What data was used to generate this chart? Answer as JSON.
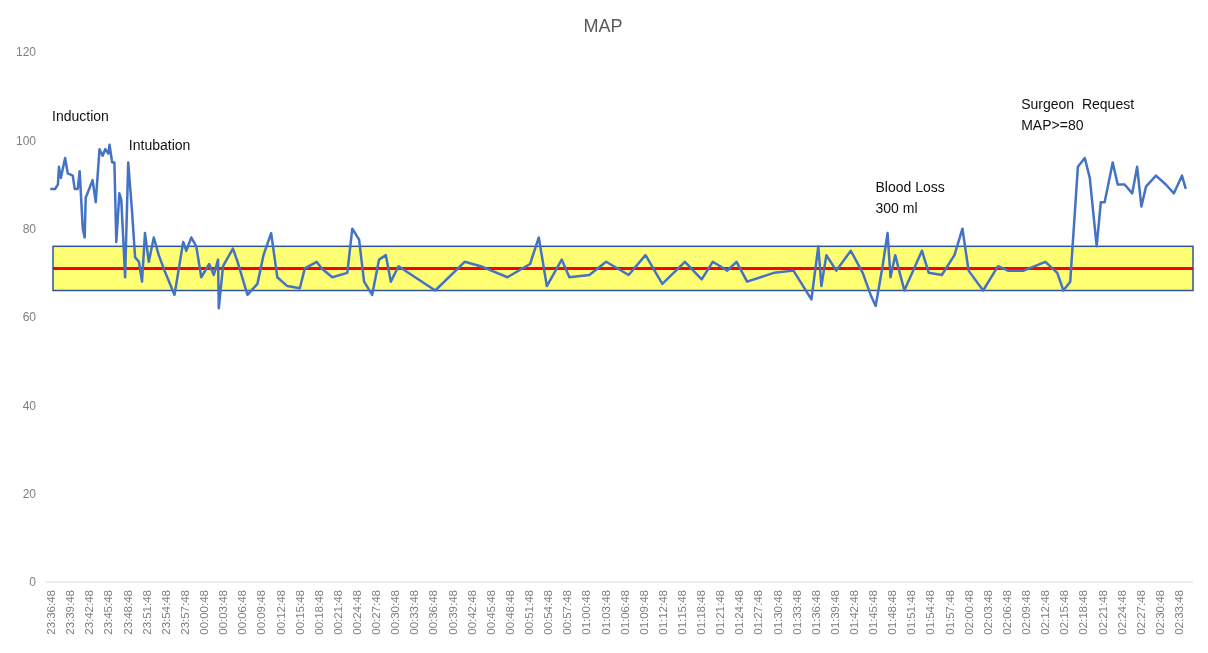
{
  "chart_data": {
    "type": "line",
    "title": "MAP",
    "x": [
      "2000-01-01T23:36:40",
      "2000-01-01T23:37:26",
      "2000-01-01T23:37:52",
      "2000-01-01T23:38:02",
      "2000-01-01T23:38:20",
      "2000-01-01T23:39:00",
      "2000-01-01T23:39:25",
      "2000-01-01T23:40:12",
      "2000-01-01T23:40:30",
      "2000-01-01T23:40:59",
      "2000-01-01T23:41:17",
      "2000-01-01T23:41:46",
      "2000-01-01T23:42:04",
      "2000-01-01T23:42:14",
      "2000-01-01T23:43:19",
      "2000-01-01T23:43:48",
      "2000-01-01T23:44:24",
      "2000-01-01T23:44:53",
      "2000-01-01T23:45:18",
      "2000-01-01T23:45:47",
      "2000-01-01T23:45:58",
      "2000-01-01T23:46:23",
      "2000-01-01T23:46:44",
      "2000-01-01T23:47:02",
      "2000-01-01T23:47:31",
      "2000-01-01T23:47:49",
      "2000-01-01T23:48:25",
      "2000-01-01T23:48:54",
      "2000-01-01T23:49:30",
      "2000-01-01T23:49:59",
      "2000-01-01T23:50:35",
      "2000-01-01T23:51:04",
      "2000-01-01T23:51:32",
      "2000-01-01T23:52:08",
      "2000-01-01T23:52:55",
      "2000-01-01T23:53:42",
      "2000-01-01T23:54:36",
      "2000-01-01T23:56:10",
      "2000-01-01T23:57:32",
      "2000-01-01T23:58:01",
      "2000-01-01T23:58:48",
      "2000-01-01T23:59:35",
      "2000-01-02T00:00:22",
      "2000-01-02T00:01:37",
      "2000-01-02T00:02:20",
      "2000-01-02T00:03:00",
      "2000-01-02T00:03:07",
      "2000-01-02T00:03:47",
      "2000-01-02T00:05:20",
      "2000-01-02T00:06:04",
      "2000-01-02T00:07:37",
      "2000-01-02T00:09:11",
      "2000-01-02T00:10:08",
      "2000-01-02T00:11:20",
      "2000-01-02T00:12:18",
      "2000-01-02T00:13:52",
      "2000-01-02T00:15:50",
      "2000-01-02T00:16:37",
      "2000-01-02T00:18:29",
      "2000-01-02T00:19:16",
      "2000-01-02T00:20:56",
      "2000-01-02T00:23:17",
      "2000-01-02T00:24:04",
      "2000-01-02T00:25:08",
      "2000-01-02T00:25:55",
      "2000-01-02T00:27:11",
      "2000-01-02T00:28:16",
      "2000-01-02T00:29:20",
      "2000-01-02T00:30:07",
      "2000-01-02T00:31:19",
      "2000-01-02T00:37:05",
      "2000-01-02T00:41:42",
      "2000-01-02T00:44:13",
      "2000-01-02T00:48:25",
      "2000-01-02T00:51:58",
      "2000-01-02T00:53:20",
      "2000-01-02T00:54:36",
      "2000-01-02T00:56:56",
      "2000-01-02T00:58:08",
      "2000-01-02T01:01:16",
      "2000-01-02T01:03:54",
      "2000-01-02T01:07:26",
      "2000-01-02T01:10:05",
      "2000-01-02T01:12:43",
      "2000-01-02T01:16:16",
      "2000-01-02T01:18:54",
      "2000-01-02T01:20:38",
      "2000-01-02T01:22:55",
      "2000-01-02T01:24:22",
      "2000-01-02T01:26:02",
      "2000-01-02T01:30:14",
      "2000-01-02T01:33:18",
      "2000-01-02T01:36:07",
      "2000-01-02T01:37:12",
      "2000-01-02T01:37:41",
      "2000-01-02T01:38:28",
      "2000-01-02T01:40:01",
      "2000-01-02T01:42:18",
      "2000-01-02T01:44:10",
      "2000-01-02T01:45:25",
      "2000-01-02T01:46:12",
      "2000-01-02T01:47:17",
      "2000-01-02T01:48:04",
      "2000-01-02T01:48:32",
      "2000-01-02T01:49:16",
      "2000-01-02T01:50:42",
      "2000-01-02T01:53:28",
      "2000-01-02T01:54:32",
      "2000-01-02T01:56:35",
      "2000-01-02T01:58:34",
      "2000-01-02T01:59:49",
      "2000-01-02T02:00:47",
      "2000-01-02T02:03:04",
      "2000-01-02T02:05:24",
      "2000-01-02T02:06:58",
      "2000-01-02T02:09:25",
      "2000-01-02T02:12:50",
      "2000-01-02T02:14:42",
      "2000-01-02T02:15:40",
      "2000-01-02T02:16:44",
      "2000-01-02T02:17:56",
      "2000-01-02T02:19:01",
      "2000-01-02T02:19:48",
      "2000-01-02T02:20:53",
      "2000-01-02T02:21:32",
      "2000-01-02T02:22:08",
      "2000-01-02T02:23:24",
      "2000-01-02T02:24:11",
      "2000-01-02T02:25:16",
      "2000-01-02T02:26:28",
      "2000-01-02T02:27:14",
      "2000-01-02T02:27:54",
      "2000-01-02T02:28:37",
      "2000-01-02T02:30:11",
      "2000-01-02T02:31:44",
      "2000-01-02T02:33:00",
      "2000-01-02T02:34:16",
      "2000-01-02T02:34:52"
    ],
    "series": [
      {
        "color": "#4472c4",
        "values": [
          89,
          89,
          90,
          94,
          91.5,
          96,
          92.5,
          92,
          89,
          89,
          93,
          80,
          78,
          87,
          91,
          86,
          98,
          96.5,
          98,
          97,
          99,
          95,
          95,
          77,
          88,
          86.5,
          69,
          95,
          84,
          73.5,
          72.5,
          68,
          79,
          72.5,
          78,
          74,
          70.5,
          65,
          77,
          75,
          78,
          76,
          69,
          72,
          69.5,
          73,
          62,
          71.5,
          75.5,
          72.5,
          65,
          67.5,
          74,
          79,
          69,
          67,
          66.5,
          71,
          72.5,
          71,
          69,
          70,
          80,
          77.5,
          68,
          65,
          73,
          74,
          68,
          71.5,
          66,
          72.5,
          71.5,
          69,
          72,
          78,
          67,
          73,
          69,
          69.5,
          72.5,
          69.5,
          74,
          67.5,
          72.5,
          68.5,
          72.5,
          70.5,
          72.5,
          68,
          70,
          70.5,
          64,
          76,
          67,
          74,
          70.5,
          75,
          70,
          65,
          62.5,
          71.5,
          79,
          69,
          74,
          66,
          75,
          70,
          69.5,
          74,
          80,
          70.5,
          66,
          71.5,
          70.5,
          70.5,
          72.5,
          70,
          66,
          68,
          94,
          96,
          91.5,
          76,
          86,
          86,
          95,
          90,
          90,
          88,
          94,
          85,
          89.5,
          92,
          90,
          88,
          92,
          89
        ]
      }
    ],
    "xlim": [
      "2000-01-01T23:36:00",
      "2000-01-02T02:36:00"
    ],
    "xticks": [
      {
        "value": "2000-01-01T23:36:48",
        "label": "23:36:48"
      },
      {
        "value": "2000-01-01T23:39:48",
        "label": "23:39:48"
      },
      {
        "value": "2000-01-01T23:42:48",
        "label": "23:42:48"
      },
      {
        "value": "2000-01-01T23:45:48",
        "label": "23:45:48"
      },
      {
        "value": "2000-01-01T23:48:48",
        "label": "23:48:48"
      },
      {
        "value": "2000-01-01T23:51:48",
        "label": "23:51:48"
      },
      {
        "value": "2000-01-01T23:54:48",
        "label": "23:54:48"
      },
      {
        "value": "2000-01-01T23:57:48",
        "label": "23:57:48"
      },
      {
        "value": "2000-01-02T00:00:48",
        "label": "00:00:48"
      },
      {
        "value": "2000-01-02T00:03:48",
        "label": "00:03:48"
      },
      {
        "value": "2000-01-02T00:06:48",
        "label": "00:06:48"
      },
      {
        "value": "2000-01-02T00:09:48",
        "label": "00:09:48"
      },
      {
        "value": "2000-01-02T00:12:48",
        "label": "00:12:48"
      },
      {
        "value": "2000-01-02T00:15:48",
        "label": "00:15:48"
      },
      {
        "value": "2000-01-02T00:18:48",
        "label": "00:18:48"
      },
      {
        "value": "2000-01-02T00:21:48",
        "label": "00:21:48"
      },
      {
        "value": "2000-01-02T00:24:48",
        "label": "00:24:48"
      },
      {
        "value": "2000-01-02T00:27:48",
        "label": "00:27:48"
      },
      {
        "value": "2000-01-02T00:30:48",
        "label": "00:30:48"
      },
      {
        "value": "2000-01-02T00:33:48",
        "label": "00:33:48"
      },
      {
        "value": "2000-01-02T00:36:48",
        "label": "00:36:48"
      },
      {
        "value": "2000-01-02T00:39:48",
        "label": "00:39:48"
      },
      {
        "value": "2000-01-02T00:42:48",
        "label": "00:42:48"
      },
      {
        "value": "2000-01-02T00:45:48",
        "label": "00:45:48"
      },
      {
        "value": "2000-01-02T00:48:48",
        "label": "00:48:48"
      },
      {
        "value": "2000-01-02T00:51:48",
        "label": "00:51:48"
      },
      {
        "value": "2000-01-02T00:54:48",
        "label": "00:54:48"
      },
      {
        "value": "2000-01-02T00:57:48",
        "label": "00:57:48"
      },
      {
        "value": "2000-01-02T01:00:48",
        "label": "01:00:48"
      },
      {
        "value": "2000-01-02T01:03:48",
        "label": "01:03:48"
      },
      {
        "value": "2000-01-02T01:06:48",
        "label": "01:06:48"
      },
      {
        "value": "2000-01-02T01:09:48",
        "label": "01:09:48"
      },
      {
        "value": "2000-01-02T01:12:48",
        "label": "01:12:48"
      },
      {
        "value": "2000-01-02T01:15:48",
        "label": "01:15:48"
      },
      {
        "value": "2000-01-02T01:18:48",
        "label": "01:18:48"
      },
      {
        "value": "2000-01-02T01:21:48",
        "label": "01:21:48"
      },
      {
        "value": "2000-01-02T01:24:48",
        "label": "01:24:48"
      },
      {
        "value": "2000-01-02T01:27:48",
        "label": "01:27:48"
      },
      {
        "value": "2000-01-02T01:30:48",
        "label": "01:30:48"
      },
      {
        "value": "2000-01-02T01:33:48",
        "label": "01:33:48"
      },
      {
        "value": "2000-01-02T01:36:48",
        "label": "01:36:48"
      },
      {
        "value": "2000-01-02T01:39:48",
        "label": "01:39:48"
      },
      {
        "value": "2000-01-02T01:42:48",
        "label": "01:42:48"
      },
      {
        "value": "2000-01-02T01:45:48",
        "label": "01:45:48"
      },
      {
        "value": "2000-01-02T01:48:48",
        "label": "01:48:48"
      },
      {
        "value": "2000-01-02T01:51:48",
        "label": "01:51:48"
      },
      {
        "value": "2000-01-02T01:54:48",
        "label": "01:54:48"
      },
      {
        "value": "2000-01-02T01:57:48",
        "label": "01:57:48"
      },
      {
        "value": "2000-01-02T02:00:48",
        "label": "02:00:48"
      },
      {
        "value": "2000-01-02T02:03:48",
        "label": "02:03:48"
      },
      {
        "value": "2000-01-02T02:06:48",
        "label": "02:06:48"
      },
      {
        "value": "2000-01-02T02:09:48",
        "label": "02:09:48"
      },
      {
        "value": "2000-01-02T02:12:48",
        "label": "02:12:48"
      },
      {
        "value": "2000-01-02T02:15:48",
        "label": "02:15:48"
      },
      {
        "value": "2000-01-02T02:18:48",
        "label": "02:18:48"
      },
      {
        "value": "2000-01-02T02:21:48",
        "label": "02:21:48"
      },
      {
        "value": "2000-01-02T02:24:48",
        "label": "02:24:48"
      },
      {
        "value": "2000-01-02T02:27:48",
        "label": "02:27:48"
      },
      {
        "value": "2000-01-02T02:30:48",
        "label": "02:30:48"
      },
      {
        "value": "2000-01-02T02:33:48",
        "label": "02:33:48"
      }
    ],
    "ylim": [
      0,
      120
    ],
    "yticks": [
      0,
      20,
      40,
      60,
      80,
      100,
      120
    ],
    "bands": [
      {
        "axis": "y",
        "from": 66,
        "to": 76,
        "color": "#ffff00"
      }
    ],
    "ref_lines": [
      {
        "axis": "y",
        "value": 71,
        "color": "#ff0000"
      }
    ],
    "annotations": [
      "Induction",
      "Intubation",
      "Blood Loss\n300 ml",
      "Surgeon  Request\nMAP>=80"
    ]
  }
}
